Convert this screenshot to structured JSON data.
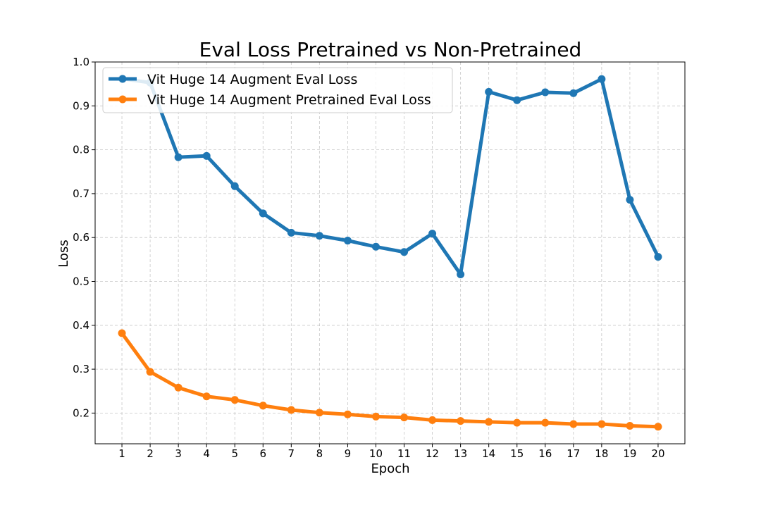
{
  "chart_data": {
    "type": "line",
    "title": "Eval Loss Pretrained vs Non-Pretrained",
    "xlabel": "Epoch",
    "ylabel": "Loss",
    "x": [
      1,
      2,
      3,
      4,
      5,
      6,
      7,
      8,
      9,
      10,
      11,
      12,
      13,
      14,
      15,
      16,
      17,
      18,
      19,
      20
    ],
    "xlim": [
      0.05,
      20.95
    ],
    "ylim": [
      0.13,
      1.0
    ],
    "yticks": [
      "0.2",
      "0.3",
      "0.4",
      "0.5",
      "0.6",
      "0.7",
      "0.8",
      "0.9",
      "1.0"
    ],
    "grid": true,
    "legend_position": "top-left",
    "series": [
      {
        "name": "Vit Huge 14 Augment Eval Loss",
        "color": "#1f77b4",
        "values": [
          0.962,
          0.953,
          0.783,
          0.786,
          0.717,
          0.655,
          0.611,
          0.604,
          0.593,
          0.579,
          0.567,
          0.609,
          0.516,
          0.932,
          0.913,
          0.931,
          0.929,
          0.961,
          0.686,
          0.556
        ]
      },
      {
        "name": "Vit Huge 14 Augment Pretrained Eval Loss",
        "color": "#ff7f0e",
        "values": [
          0.382,
          0.294,
          0.258,
          0.238,
          0.23,
          0.217,
          0.207,
          0.201,
          0.197,
          0.192,
          0.19,
          0.184,
          0.182,
          0.18,
          0.178,
          0.178,
          0.175,
          0.175,
          0.171,
          0.169
        ]
      }
    ]
  }
}
